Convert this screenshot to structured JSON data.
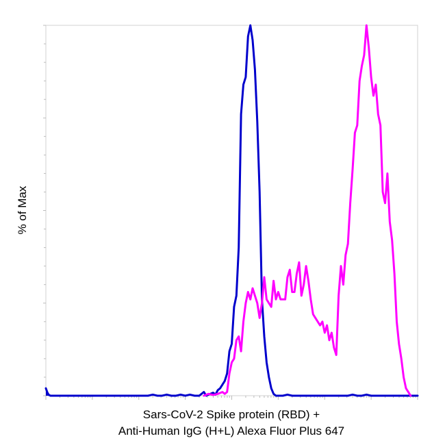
{
  "chart_data": {
    "type": "area",
    "title": "",
    "ylabel": "% of Max",
    "xlabel_line1": "Sars-CoV-2 Spike protein (RBD) +",
    "xlabel_line2": "Anti-Human IgG (H+L) Alexa Fluor Plus 647",
    "x_scale": "log",
    "xlim": [
      1,
      100000000
    ],
    "ylim": [
      0,
      100
    ],
    "grid": false,
    "legend": "none",
    "series": [
      {
        "color": "#0000cc",
        "fill": "#0000cc",
        "points": [
          [
            1.0,
            2
          ],
          [
            1.12,
            0.3
          ],
          [
            1.26,
            0
          ],
          [
            100,
            0
          ],
          [
            158,
            0
          ],
          [
            200,
            0.3
          ],
          [
            251,
            0
          ],
          [
            316,
            0
          ],
          [
            398,
            0.3
          ],
          [
            501,
            0
          ],
          [
            631,
            0
          ],
          [
            794,
            0.3
          ],
          [
            1000,
            0
          ],
          [
            1259,
            0.3
          ],
          [
            1585,
            0
          ],
          [
            1995,
            0
          ],
          [
            2512,
            1
          ],
          [
            2818,
            0
          ],
          [
            3162,
            0.3
          ],
          [
            3981,
            0.8
          ],
          [
            4467,
            0.3
          ],
          [
            5012,
            1.5
          ],
          [
            5623,
            2
          ],
          [
            6310,
            3
          ],
          [
            7079,
            4
          ],
          [
            7943,
            6
          ],
          [
            8913,
            12
          ],
          [
            10000,
            14
          ],
          [
            11220,
            24
          ],
          [
            12589,
            27
          ],
          [
            14125,
            40
          ],
          [
            15849,
            76
          ],
          [
            17783,
            84
          ],
          [
            19953,
            86
          ],
          [
            22387,
            97
          ],
          [
            25119,
            100
          ],
          [
            28184,
            96
          ],
          [
            31623,
            88
          ],
          [
            35481,
            74
          ],
          [
            39811,
            55
          ],
          [
            44668,
            26
          ],
          [
            50119,
            16
          ],
          [
            56234,
            9
          ],
          [
            63096,
            5
          ],
          [
            70795,
            2
          ],
          [
            79433,
            0.5
          ],
          [
            89125,
            0
          ],
          [
            125893,
            0
          ],
          [
            158489,
            0.3
          ],
          [
            199526,
            0
          ],
          [
            3162278,
            0
          ],
          [
            3981072,
            0.3
          ],
          [
            5011872,
            0
          ],
          [
            6309573,
            0
          ],
          [
            7943282,
            0.3
          ],
          [
            10000000,
            0
          ],
          [
            100000000,
            0
          ]
        ]
      },
      {
        "color": "#ff00ff",
        "fill": "none",
        "points": [
          [
            2512,
            0
          ],
          [
            3162,
            0.5
          ],
          [
            3981,
            0.2
          ],
          [
            5012,
            0.5
          ],
          [
            6310,
            1
          ],
          [
            7079,
            0.5
          ],
          [
            7943,
            1
          ],
          [
            8913,
            6
          ],
          [
            10000,
            9
          ],
          [
            11220,
            10
          ],
          [
            12589,
            15
          ],
          [
            14125,
            16
          ],
          [
            15849,
            12
          ],
          [
            17783,
            20
          ],
          [
            19953,
            25
          ],
          [
            22387,
            28
          ],
          [
            25119,
            26
          ],
          [
            28184,
            29
          ],
          [
            31623,
            27
          ],
          [
            35481,
            25
          ],
          [
            39811,
            21
          ],
          [
            44668,
            25
          ],
          [
            50119,
            32
          ],
          [
            56234,
            26
          ],
          [
            63096,
            25
          ],
          [
            70795,
            24
          ],
          [
            79433,
            31
          ],
          [
            89125,
            26
          ],
          [
            100000,
            28
          ],
          [
            112202,
            26
          ],
          [
            125893,
            26
          ],
          [
            141254,
            26
          ],
          [
            158489,
            32
          ],
          [
            177828,
            34
          ],
          [
            199526,
            28
          ],
          [
            223872,
            28
          ],
          [
            251189,
            33
          ],
          [
            281838,
            36
          ],
          [
            316228,
            27
          ],
          [
            354813,
            30
          ],
          [
            398107,
            35
          ],
          [
            446684,
            31
          ],
          [
            501187,
            26
          ],
          [
            562341,
            22
          ],
          [
            630957,
            21
          ],
          [
            707946,
            20
          ],
          [
            794328,
            19
          ],
          [
            891251,
            20
          ],
          [
            1000000,
            17
          ],
          [
            1122018,
            19
          ],
          [
            1258925,
            15
          ],
          [
            1412538,
            17
          ],
          [
            1584893,
            13
          ],
          [
            1778279,
            11
          ],
          [
            1995262,
            27
          ],
          [
            2238721,
            35
          ],
          [
            2511886,
            30
          ],
          [
            2818383,
            38
          ],
          [
            3162278,
            41
          ],
          [
            3548134,
            52
          ],
          [
            3981072,
            61
          ],
          [
            4466836,
            71
          ],
          [
            5011872,
            73
          ],
          [
            5623413,
            85
          ],
          [
            6309573,
            89
          ],
          [
            7079458,
            92
          ],
          [
            7943282,
            100
          ],
          [
            8912509,
            94
          ],
          [
            10000000,
            86
          ],
          [
            11220185,
            81
          ],
          [
            12589254,
            84
          ],
          [
            14125375,
            76
          ],
          [
            15848932,
            73
          ],
          [
            17782794,
            55
          ],
          [
            19952623,
            52
          ],
          [
            22387211,
            60
          ],
          [
            25118864,
            47
          ],
          [
            28183829,
            42
          ],
          [
            31622777,
            33
          ],
          [
            35481339,
            20
          ],
          [
            39810717,
            14
          ],
          [
            44668359,
            10
          ],
          [
            50118723,
            5
          ],
          [
            56234133,
            2
          ],
          [
            63095734,
            1
          ],
          [
            70794578,
            0
          ]
        ]
      }
    ]
  }
}
